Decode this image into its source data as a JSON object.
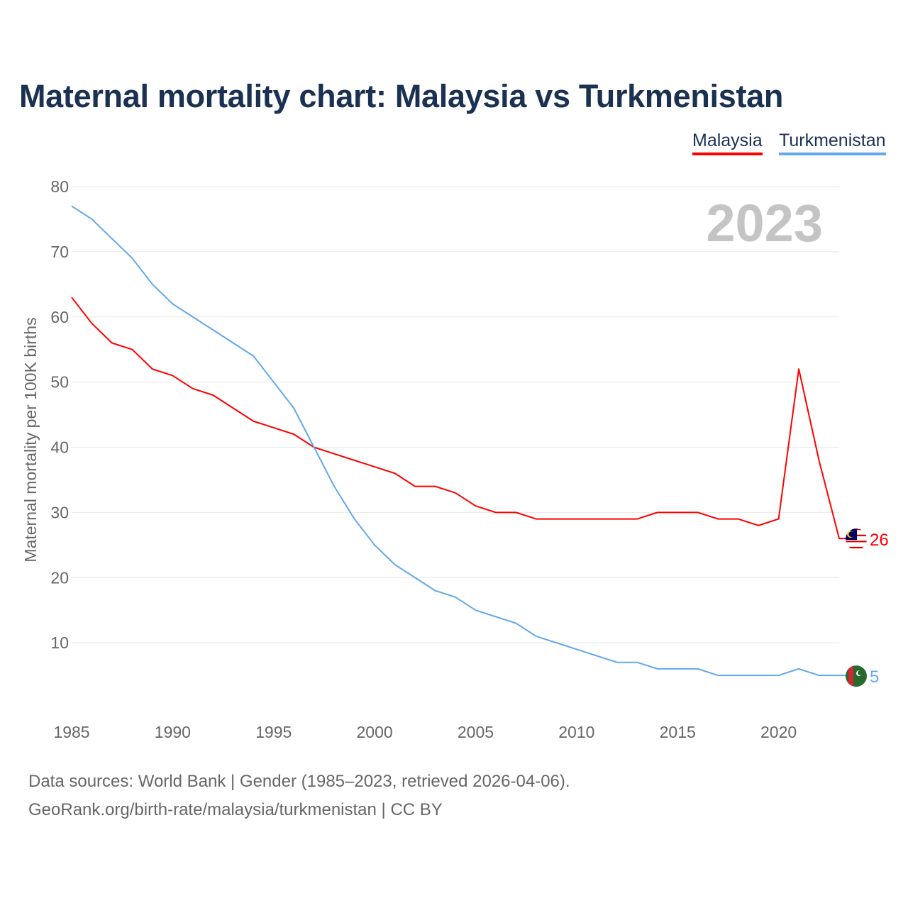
{
  "title": "Maternal mortality chart: Malaysia vs Turkmenistan",
  "legend": {
    "malaysia": "Malaysia",
    "turkmenistan": "Turkmenistan"
  },
  "footer": {
    "line1": "Data sources: World Bank | Gender (1985–2023, retrieved 2026-04-06).",
    "line2": "GeoRank.org/birth-rate/malaysia/turkmenistan | CC BY"
  },
  "chart_data": {
    "type": "line",
    "title": "Maternal mortality chart: Malaysia vs Turkmenistan",
    "xlabel": "",
    "ylabel": "Maternal mortality per 100K births",
    "year_watermark": "2023",
    "xlim": [
      1985,
      2023
    ],
    "ylim": [
      0,
      80
    ],
    "xticks": [
      "1985",
      "1990",
      "1995",
      "2000",
      "2005",
      "2010",
      "2015",
      "2020"
    ],
    "yticks": [
      "10",
      "20",
      "30",
      "40",
      "50",
      "60",
      "70",
      "80"
    ],
    "grid": true,
    "legend_position": "top-right",
    "x": [
      1985,
      1986,
      1987,
      1988,
      1989,
      1990,
      1991,
      1992,
      1993,
      1994,
      1995,
      1996,
      1997,
      1998,
      1999,
      2000,
      2001,
      2002,
      2003,
      2004,
      2005,
      2006,
      2007,
      2008,
      2009,
      2010,
      2011,
      2012,
      2013,
      2014,
      2015,
      2016,
      2017,
      2018,
      2019,
      2020,
      2021,
      2022,
      2023
    ],
    "series": [
      {
        "name": "Malaysia",
        "color": "#ff0000",
        "end_label": "26",
        "values": [
          63,
          59,
          56,
          55,
          52,
          51,
          49,
          48,
          46,
          44,
          43,
          42,
          40,
          39,
          38,
          37,
          36,
          34,
          34,
          33,
          31,
          30,
          30,
          29,
          29,
          29,
          29,
          29,
          29,
          30,
          30,
          30,
          29,
          29,
          28,
          29,
          52,
          38,
          26
        ]
      },
      {
        "name": "Turkmenistan",
        "color": "#62a8ee",
        "end_label": "5",
        "values": [
          77,
          75,
          72,
          69,
          65,
          62,
          60,
          58,
          56,
          54,
          50,
          46,
          40,
          34,
          29,
          25,
          22,
          20,
          18,
          17,
          15,
          14,
          13,
          11,
          10,
          9,
          8,
          7,
          7,
          6,
          6,
          6,
          5,
          5,
          5,
          5,
          6,
          5,
          5
        ]
      }
    ]
  }
}
